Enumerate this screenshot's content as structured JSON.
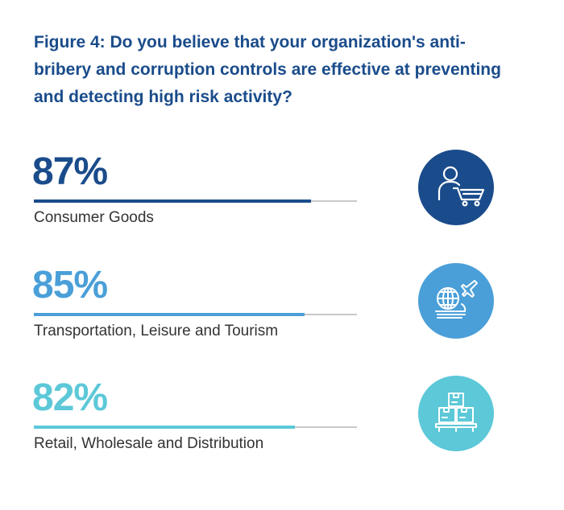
{
  "title": "Figure 4: Do you believe that your organization's anti-bribery and corruption controls are effective at preventing and detecting high risk activity?",
  "colors": {
    "title": "#1a4c8b",
    "track": "#c8c8c8"
  },
  "chart_data": {
    "type": "bar",
    "title": "Figure 4: Do you believe that your organization's anti-bribery and corruption controls are effective at preventing and detecting high risk activity?",
    "ylim": [
      0,
      100
    ],
    "categories": [
      "Consumer Goods",
      "Transportation, Leisure and Tourism",
      "Retail, Wholesale and Distribution"
    ],
    "values": [
      87,
      85,
      82
    ],
    "rows": [
      {
        "value_label": "87%",
        "value": 87,
        "label": "Consumer Goods",
        "color": "#1a4c8b",
        "icon": "shopper-cart-icon"
      },
      {
        "value_label": "85%",
        "value": 85,
        "label": "Transportation, Leisure and Tourism",
        "color": "#4a9fd8",
        "icon": "globe-train-plane-icon"
      },
      {
        "value_label": "82%",
        "value": 82,
        "label": "Retail, Wholesale and Distribution",
        "color": "#5cc8d8",
        "icon": "boxes-pallet-icon"
      }
    ]
  }
}
